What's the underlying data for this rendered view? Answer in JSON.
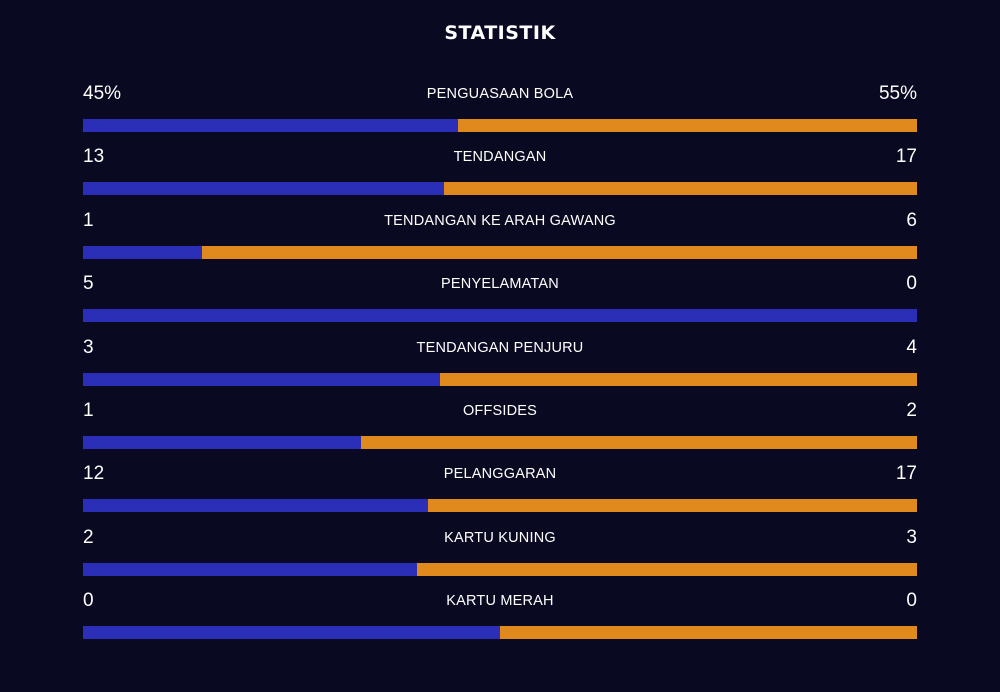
{
  "title": "STATISTIK",
  "colors": {
    "background": "#0a0922",
    "home": "#2b2fb8",
    "away": "#e08a1e",
    "text": "#ffffff"
  },
  "stats": [
    {
      "label": "PENGUASAAN BOLA",
      "home": "45%",
      "away": "55%",
      "home_share": 0.45
    },
    {
      "label": "TENDANGAN",
      "home": "13",
      "away": "17",
      "home_share": 0.4333
    },
    {
      "label": "TENDANGAN KE ARAH GAWANG",
      "home": "1",
      "away": "6",
      "home_share": 0.1429
    },
    {
      "label": "PENYELAMATAN",
      "home": "5",
      "away": "0",
      "home_share": 1.0
    },
    {
      "label": "TENDANGAN PENJURU",
      "home": "3",
      "away": "4",
      "home_share": 0.4286
    },
    {
      "label": "OFFSIDES",
      "home": "1",
      "away": "2",
      "home_share": 0.3333
    },
    {
      "label": "PELANGGARAN",
      "home": "12",
      "away": "17",
      "home_share": 0.4138
    },
    {
      "label": "KARTU KUNING",
      "home": "2",
      "away": "3",
      "home_share": 0.4
    },
    {
      "label": "KARTU MERAH",
      "home": "0",
      "away": "0",
      "home_share": 0.5
    }
  ]
}
